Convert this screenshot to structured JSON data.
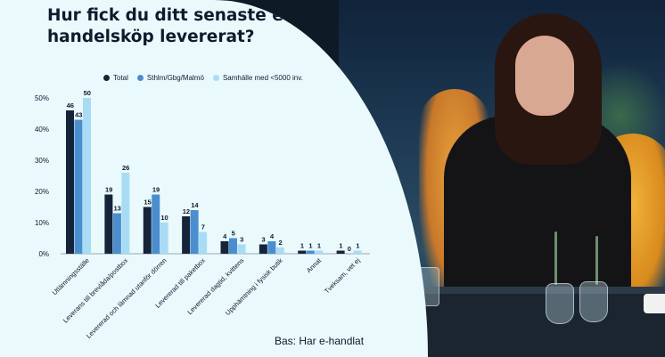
{
  "title": "Hur fick du ditt senaste e-handelsköp levererat?",
  "footnote": "Bas: Har e-handlat",
  "colors": {
    "Total": "#15243a",
    "Sthlm/Gbg/Malmö": "#4a8ed0",
    "Samhälle med <5000 inv.": "#a8dcf5"
  },
  "chart_data": {
    "type": "bar",
    "title": "Hur fick du ditt senaste e-handelsköp levererat?",
    "xlabel": "",
    "ylabel": "",
    "ylim": [
      0,
      50
    ],
    "yticks": [
      "0%",
      "10%",
      "20%",
      "30%",
      "40%",
      "50%"
    ],
    "grid": false,
    "legend": "top",
    "categories": [
      "Utlämningsställe",
      "Leverans till brevlåda/postbox",
      "Levererad och lämnad utanför dörren",
      "Levererad till paketbox",
      "Levererad dagtid, kvittens",
      "Upphämtning i fysisk butik",
      "Annat",
      "Tveksam, vet ej"
    ],
    "series": [
      {
        "name": "Total",
        "values": [
          46,
          19,
          15,
          12,
          4,
          3,
          1,
          1
        ]
      },
      {
        "name": "Sthlm/Gbg/Malmö",
        "values": [
          43,
          13,
          19,
          14,
          5,
          4,
          1,
          0
        ]
      },
      {
        "name": "Samhälle med <5000 inv.",
        "values": [
          50,
          26,
          10,
          7,
          3,
          2,
          1,
          1
        ]
      }
    ]
  }
}
